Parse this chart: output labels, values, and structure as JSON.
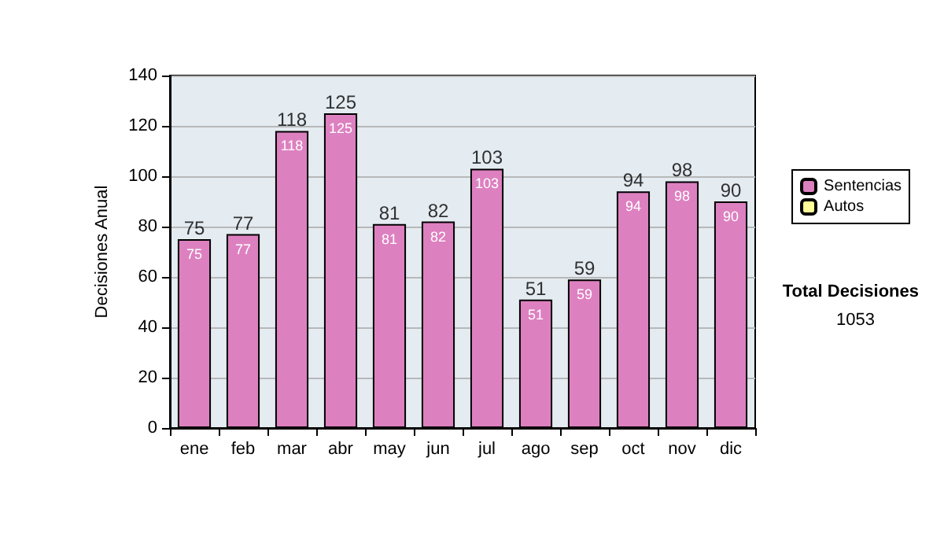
{
  "chart_data": {
    "type": "bar",
    "ylabel": "Decisiones Anual",
    "categories": [
      "ene",
      "feb",
      "mar",
      "abr",
      "may",
      "jun",
      "jul",
      "ago",
      "sep",
      "oct",
      "nov",
      "dic"
    ],
    "series": [
      {
        "name": "Sentencias",
        "color": "#dd80c0",
        "values": [
          75,
          77,
          118,
          125,
          81,
          82,
          103,
          51,
          59,
          94,
          98,
          90
        ]
      },
      {
        "name": "Autos",
        "color": "#ffff99",
        "values": [
          null,
          null,
          null,
          null,
          null,
          null,
          null,
          null,
          null,
          null,
          null,
          null
        ]
      }
    ],
    "stacked": true,
    "totals": [
      "75",
      "77",
      "118",
      "125",
      "81",
      "82",
      "103",
      "51",
      "59",
      "94",
      "98",
      "90"
    ],
    "data_labels": true,
    "ylim": [
      0,
      140
    ],
    "yticks": [
      0,
      20,
      40,
      60,
      80,
      100,
      120,
      140
    ],
    "grid": "y",
    "legend": "right",
    "annotations": [
      "Total Decisiones",
      "1053"
    ]
  }
}
